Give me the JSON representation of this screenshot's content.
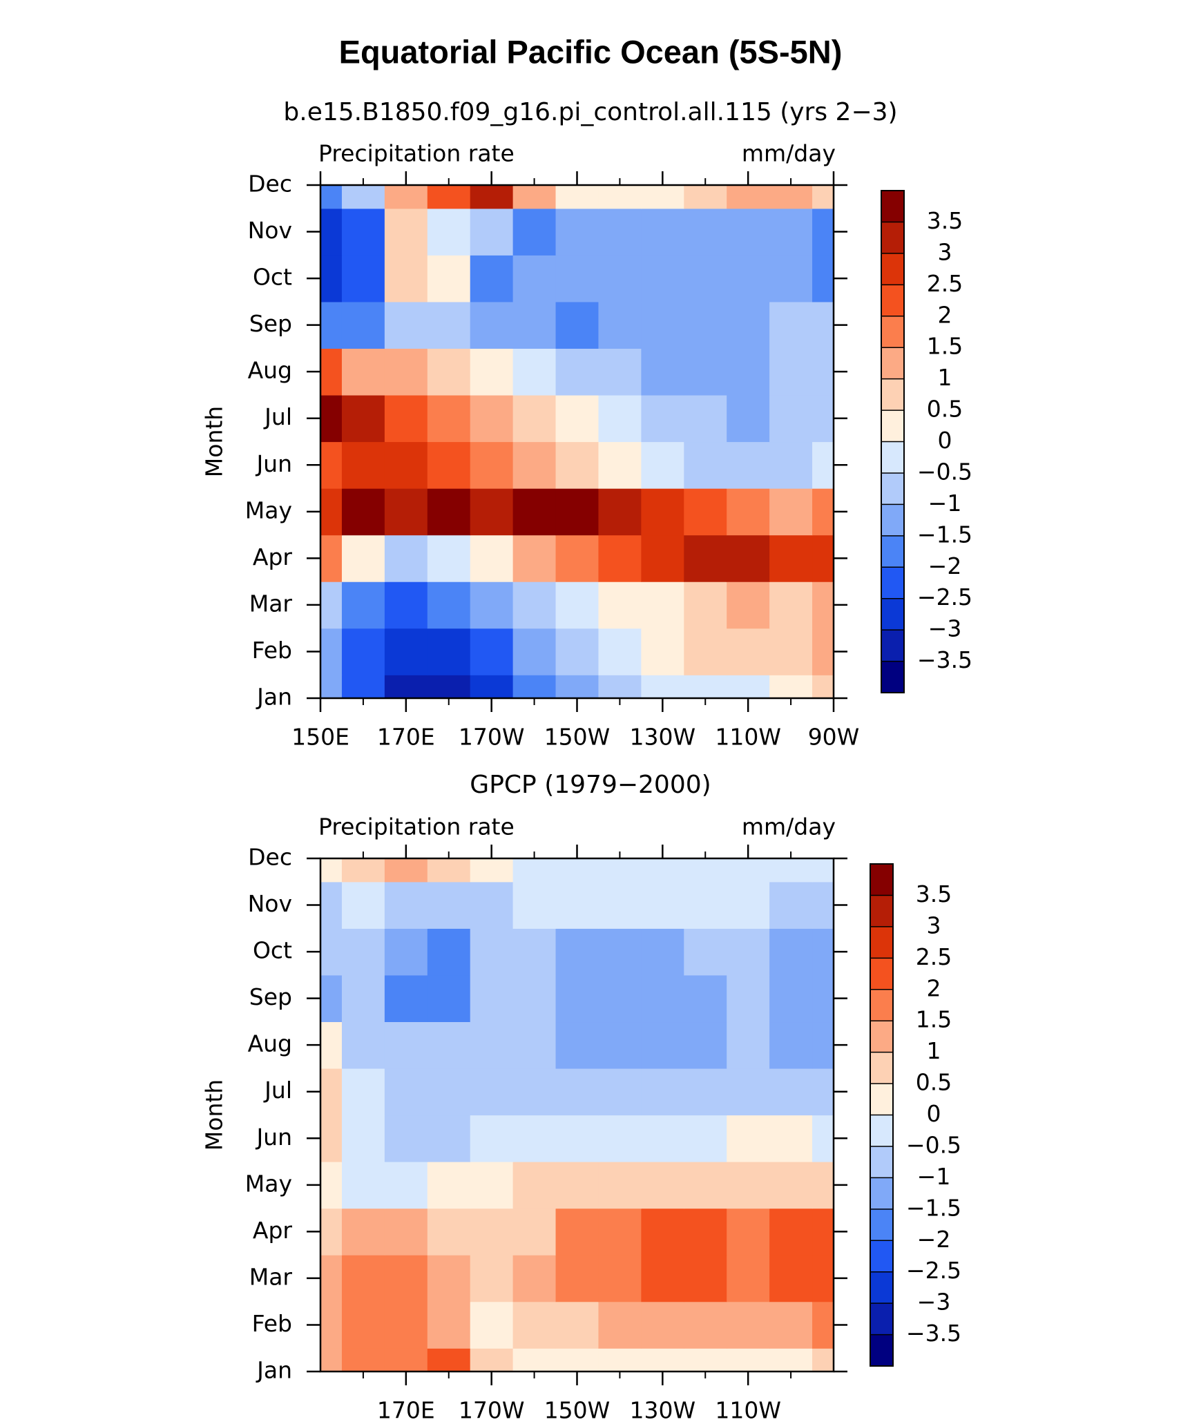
{
  "title": "Equatorial Pacific Ocean (5S-5N)",
  "chart_data": [
    {
      "type": "contour",
      "title": "b.e15.B1850.f09_g16.pi_control.all.115 (yrs 2−3)",
      "left_label": "Precipitation rate",
      "right_label": "mm/day",
      "ylabel": "Month",
      "categories": [
        "Jan",
        "Feb",
        "Mar",
        "Apr",
        "May",
        "Jun",
        "Jul",
        "Aug",
        "Sep",
        "Oct",
        "Nov",
        "Dec"
      ],
      "x": [
        150,
        160,
        170,
        180,
        190,
        200,
        210,
        220,
        230,
        240,
        250,
        260,
        270
      ],
      "xlim": [
        150,
        270
      ],
      "xticks": [
        {
          "value": 150,
          "label": "150E"
        },
        {
          "value": 170,
          "label": "170E"
        },
        {
          "value": 190,
          "label": "170W"
        },
        {
          "value": 210,
          "label": "150W"
        },
        {
          "value": 230,
          "label": "130W"
        },
        {
          "value": 250,
          "label": "110W"
        },
        {
          "value": 270,
          "label": "90W"
        }
      ],
      "xminorticks": [
        160,
        180,
        200,
        220,
        240,
        260
      ],
      "z": [
        [
          -1.5,
          -2.5,
          -3.5,
          -3.5,
          -3,
          -2,
          -1.5,
          -1,
          -0.5,
          -0.5,
          -0.3,
          0,
          0.5
        ],
        [
          -1.5,
          -2.5,
          -3,
          -3,
          -2.5,
          -1.5,
          -1,
          -0.5,
          0.3,
          0.5,
          0.8,
          0.8,
          1.2
        ],
        [
          -1,
          -2,
          -2.5,
          -2,
          -1.5,
          -1,
          -0.5,
          0,
          0.3,
          0.5,
          1,
          0.8,
          1.2
        ],
        [
          1.5,
          0,
          -1,
          -0.5,
          0,
          1,
          1.5,
          2,
          2.5,
          3,
          3,
          2.5,
          2.5
        ],
        [
          2.5,
          3.8,
          3.2,
          3.5,
          3,
          3.5,
          3.5,
          3,
          2.5,
          2,
          1.5,
          1,
          1.5
        ],
        [
          2,
          2.5,
          2.5,
          2,
          1.5,
          1,
          0.5,
          0,
          -0.5,
          -1,
          -1,
          -1,
          -0.5
        ],
        [
          3.8,
          3,
          2,
          1.5,
          1,
          0.5,
          0,
          -0.5,
          -1,
          -1,
          -1.5,
          -1,
          -1
        ],
        [
          2,
          1,
          1,
          0.5,
          0,
          -0.5,
          -1,
          -1,
          -1.5,
          -1.5,
          -1.5,
          -1,
          -1
        ],
        [
          -2,
          -2,
          -1,
          -1,
          -1.5,
          -1.5,
          -2,
          -1.5,
          -1.5,
          -1.5,
          -1.5,
          -1,
          -1
        ],
        [
          -3,
          -2.5,
          0.5,
          0,
          -2,
          -1.5,
          -1.5,
          -1.5,
          -1.5,
          -1.5,
          -1.5,
          -1.5,
          -2
        ],
        [
          -3,
          -2.5,
          0.5,
          -0.5,
          -1,
          -2,
          -1.5,
          -1.5,
          -1.5,
          -1.5,
          -1.5,
          -1.5,
          -2
        ],
        [
          -2,
          -1,
          1,
          2,
          3,
          1,
          0,
          0,
          0,
          0.5,
          1,
          1,
          0.5
        ]
      ],
      "levels": [
        {
          "value": -3.5,
          "label": "−3.5"
        },
        {
          "value": -3,
          "label": "−3"
        },
        {
          "value": -2.5,
          "label": "−2.5"
        },
        {
          "value": -2,
          "label": "−2"
        },
        {
          "value": -1.5,
          "label": "−1.5"
        },
        {
          "value": -1,
          "label": "−1"
        },
        {
          "value": -0.5,
          "label": "−0.5"
        },
        0,
        0.5,
        1,
        1.5,
        2,
        2.5,
        3,
        3.5
      ],
      "colors": [
        "#000080",
        "#0a1fae",
        "#0b39d6",
        "#2158f3",
        "#4b84f6",
        "#80a9f8",
        "#b1cbfa",
        "#d7e8fd",
        "#fff0dd",
        "#fdd1b4",
        "#fcaa85",
        "#fb7e4d",
        "#f4521f",
        "#dc3409",
        "#b51e06",
        "#850000"
      ]
    },
    {
      "type": "contour",
      "title": "GPCP (1979−2000)",
      "left_label": "Precipitation rate",
      "right_label": "mm/day",
      "ylabel": "Month",
      "categories": [
        "Jan",
        "Feb",
        "Mar",
        "Apr",
        "May",
        "Jun",
        "Jul",
        "Aug",
        "Sep",
        "Oct",
        "Nov",
        "Dec"
      ],
      "x": [
        150,
        160,
        170,
        180,
        190,
        200,
        210,
        220,
        230,
        240,
        250,
        260,
        270
      ],
      "xlim": [
        150,
        270
      ],
      "xticks": [
        {
          "value": 170,
          "label": "170E"
        },
        {
          "value": 190,
          "label": "170W"
        },
        {
          "value": 210,
          "label": "150W"
        },
        {
          "value": 230,
          "label": "130W"
        },
        {
          "value": 250,
          "label": "110W"
        }
      ],
      "xminorticks": [
        160,
        180,
        200,
        220,
        240,
        260
      ],
      "z": [
        [
          1,
          1.5,
          1.5,
          2,
          0.5,
          0.3,
          0.3,
          0.2,
          0.2,
          0.2,
          0.2,
          0.3,
          0.5
        ],
        [
          1,
          1.5,
          1.5,
          1,
          0.3,
          0.5,
          0.8,
          1,
          1,
          1,
          1,
          1.2,
          1.5
        ],
        [
          1,
          1.5,
          1.5,
          1,
          0.5,
          1,
          1.5,
          1.5,
          2,
          2,
          1.5,
          2,
          2
        ],
        [
          0.5,
          1,
          1,
          0.5,
          0.5,
          0.8,
          1.5,
          1.5,
          2,
          2,
          1.5,
          2,
          2
        ],
        [
          0,
          -0.3,
          -0.5,
          0,
          0.3,
          0.5,
          0.5,
          0.5,
          0.5,
          0.5,
          0.5,
          0.5,
          0.5
        ],
        [
          0.5,
          -0.3,
          -0.8,
          -0.7,
          -0.5,
          -0.5,
          -0.3,
          -0.3,
          -0.3,
          -0.3,
          0,
          0,
          -0.2
        ],
        [
          0.5,
          -0.5,
          -0.8,
          -0.8,
          -0.8,
          -0.8,
          -0.8,
          -0.8,
          -0.8,
          -0.8,
          -0.8,
          -1,
          -0.8
        ],
        [
          0.3,
          -0.8,
          -0.8,
          -0.8,
          -0.8,
          -0.8,
          -1.2,
          -1.2,
          -1.2,
          -1.2,
          -0.8,
          -1.2,
          -1.2
        ],
        [
          -1.5,
          -1,
          -1.8,
          -1.7,
          -1,
          -1,
          -1.2,
          -1.2,
          -1.2,
          -1.2,
          -0.8,
          -1.2,
          -1.2
        ],
        [
          -1,
          -0.8,
          -1.5,
          -1.8,
          -1,
          -0.8,
          -1.2,
          -1.2,
          -1.2,
          -1,
          -0.8,
          -1.2,
          -1.2
        ],
        [
          -0.8,
          -0.5,
          -0.8,
          -0.8,
          -0.8,
          -0.5,
          -0.5,
          -0.5,
          -0.5,
          -0.5,
          -0.5,
          -0.8,
          -0.8
        ],
        [
          0,
          0.8,
          1.2,
          0.5,
          0,
          -0.3,
          -0.3,
          -0.3,
          -0.3,
          -0.3,
          -0.3,
          -0.3,
          -0.3
        ]
      ],
      "levels": [
        {
          "value": -3.5,
          "label": "−3.5"
        },
        {
          "value": -3,
          "label": "−3"
        },
        {
          "value": -2.5,
          "label": "−2.5"
        },
        {
          "value": -2,
          "label": "−2"
        },
        {
          "value": -1.5,
          "label": "−1.5"
        },
        {
          "value": -1,
          "label": "−1"
        },
        {
          "value": -0.5,
          "label": "−0.5"
        },
        0,
        0.5,
        1,
        1.5,
        2,
        2.5,
        3,
        3.5
      ],
      "colors": [
        "#000080",
        "#0a1fae",
        "#0b39d6",
        "#2158f3",
        "#4b84f6",
        "#80a9f8",
        "#b1cbfa",
        "#d7e8fd",
        "#fff0dd",
        "#fdd1b4",
        "#fcaa85",
        "#fb7e4d",
        "#f4521f",
        "#dc3409",
        "#b51e06",
        "#850000"
      ]
    }
  ]
}
